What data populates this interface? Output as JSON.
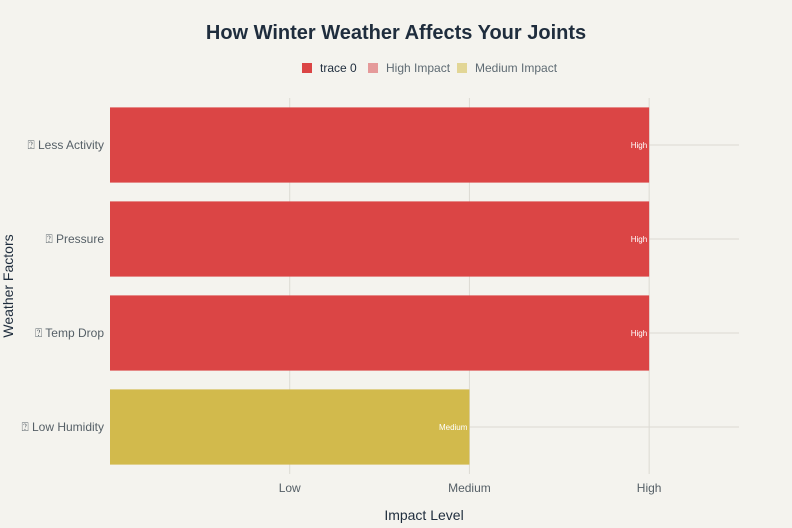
{
  "chart_data": {
    "type": "bar",
    "orientation": "horizontal",
    "title": "How Winter Weather Affects Your Joints",
    "xlabel": "Impact Level",
    "ylabel": "Weather Factors",
    "x_tick_labels": [
      "Low",
      "Medium",
      "High"
    ],
    "xlim": [
      0,
      3.5
    ],
    "x_tick_values": [
      1,
      2,
      3
    ],
    "categories": [
      "⍰ Less Activity",
      "⍰ Pressure",
      "⍰ Temp Drop",
      "⍰ Low Humidity"
    ],
    "values": [
      3,
      3,
      3,
      2
    ],
    "bar_labels": [
      "High",
      "High",
      "High",
      "Medium"
    ],
    "bar_colors": [
      "#db4545",
      "#db4545",
      "#db4545",
      "#d2ba4c"
    ],
    "grid": true,
    "legend": {
      "placement": "top-center",
      "items": [
        {
          "label": "trace 0",
          "color": "#db4545"
        },
        {
          "label": "High Impact",
          "color": "#e59a9a"
        },
        {
          "label": "Medium Impact",
          "color": "#e2d696"
        }
      ]
    }
  }
}
